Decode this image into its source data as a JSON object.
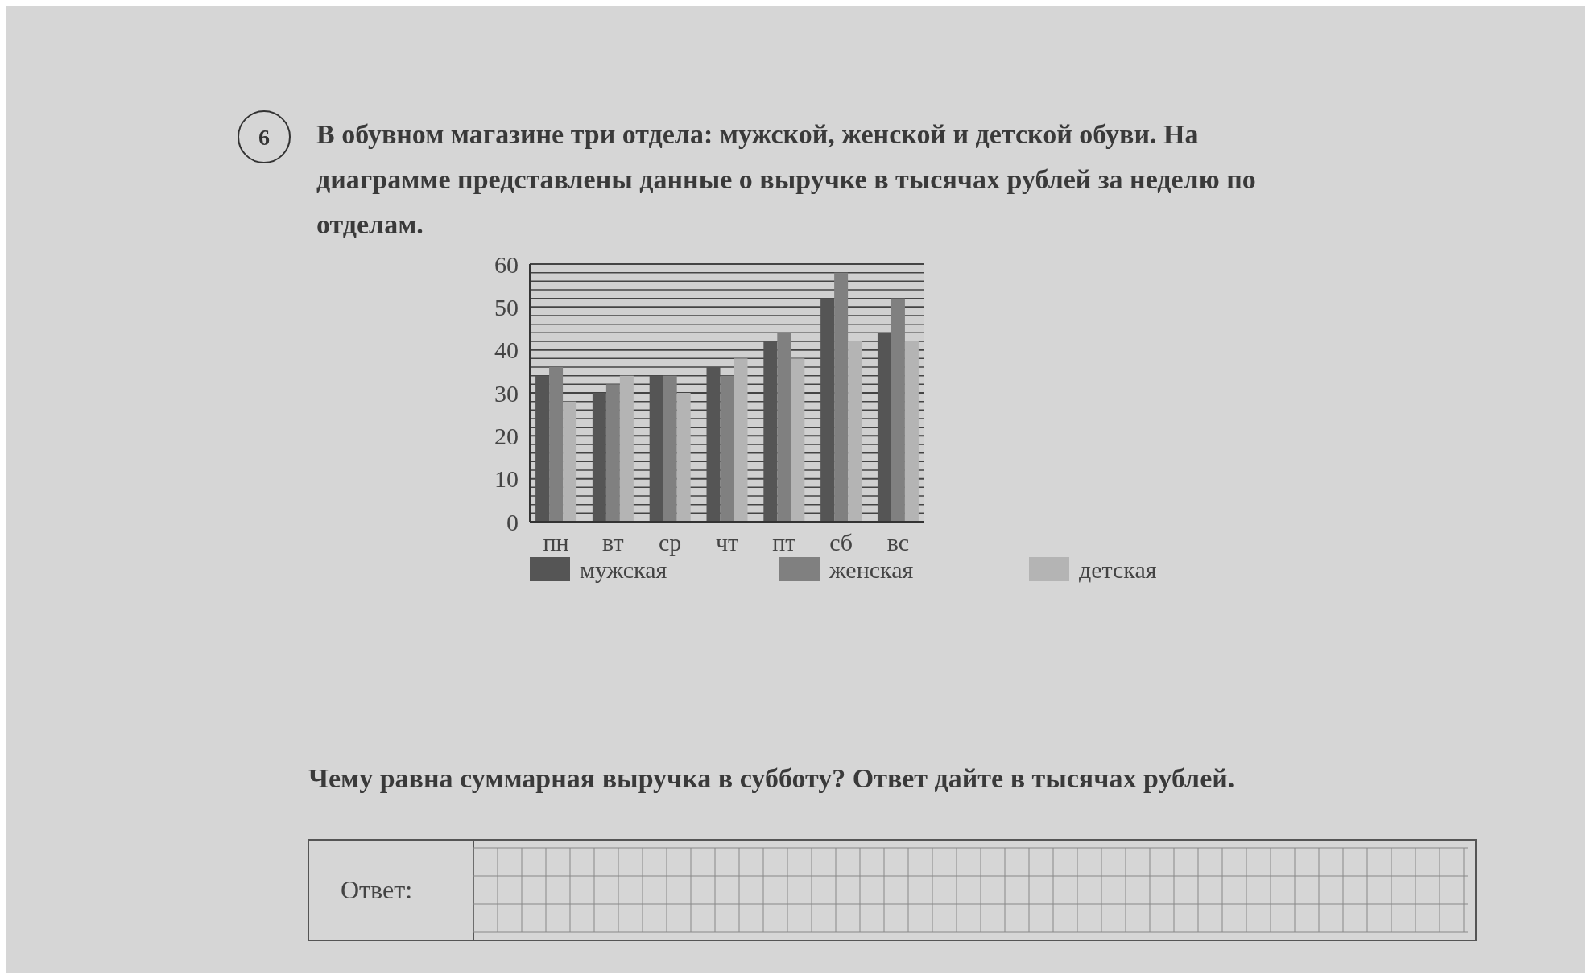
{
  "chart_data": {
    "type": "bar",
    "title": "В обувном магазине три отдела: мужской, женской и детской обуви. На диаграмме представлены данные о выручке в тысячах рублей за неделю по отделам.",
    "categories": [
      "пн",
      "вт",
      "ср",
      "чт",
      "пт",
      "сб",
      "вс"
    ],
    "series": [
      {
        "name": "мужская",
        "color": "#555555",
        "values": [
          34,
          30,
          34,
          36,
          42,
          52,
          44
        ]
      },
      {
        "name": "женская",
        "color": "#808080",
        "values": [
          36,
          32,
          34,
          34,
          44,
          58,
          52
        ]
      },
      {
        "name": "детская",
        "color": "#b4b4b4",
        "values": [
          28,
          34,
          30,
          38,
          38,
          42,
          42
        ]
      }
    ],
    "ylim": [
      0,
      60
    ],
    "yticks": [
      0,
      {
        "value": 2,
        "label": null
      },
      {
        "value": 4,
        "label": null
      },
      {
        "value": 6,
        "label": null
      },
      {
        "value": 8,
        "label": null
      },
      10,
      {
        "value": 12,
        "label": null
      },
      {
        "value": 14,
        "label": null
      },
      {
        "value": 16,
        "label": null
      },
      {
        "value": 18,
        "label": null
      },
      20,
      {
        "value": 22,
        "label": null
      },
      {
        "value": 24,
        "label": null
      },
      {
        "value": 26,
        "label": null
      },
      {
        "value": 28,
        "label": null
      },
      30,
      {
        "value": 32,
        "label": null
      },
      {
        "value": 34,
        "label": null
      },
      {
        "value": 36,
        "label": null
      },
      {
        "value": 38,
        "label": null
      },
      40,
      {
        "value": 42,
        "label": null
      },
      {
        "value": 44,
        "label": null
      },
      {
        "value": 46,
        "label": null
      },
      {
        "value": 48,
        "label": null
      },
      50,
      {
        "value": 52,
        "label": null
      },
      {
        "value": 54,
        "label": null
      },
      {
        "value": 56,
        "label": null
      },
      {
        "value": 58,
        "label": null
      },
      60
    ],
    "grid": "y",
    "legend": "bottom",
    "annotations": [
      "6",
      "Чему равна суммарная выручка в субботу? Ответ дайте в тысячах рублей.",
      "Ответ:"
    ]
  }
}
